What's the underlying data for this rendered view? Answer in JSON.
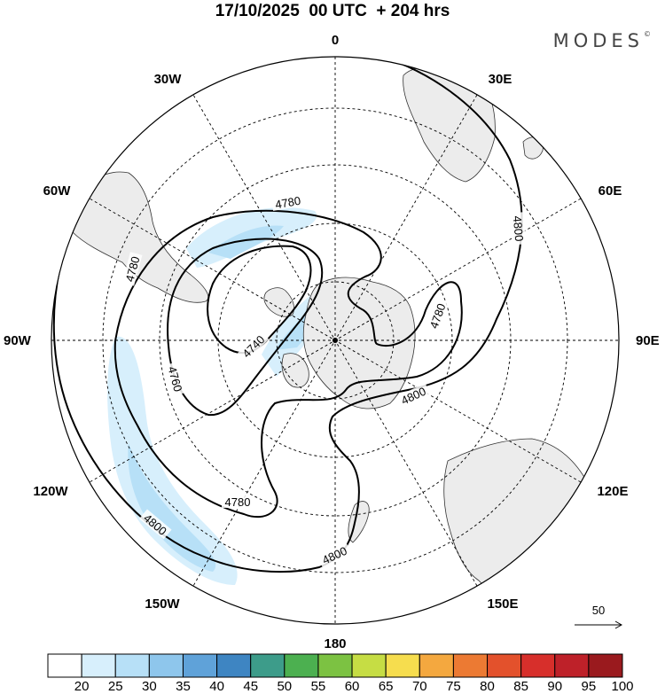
{
  "title": "17/10/2025  00 UTC  + 204 hrs",
  "brand": "MODES",
  "brand_mark": "©",
  "longitude_labels": {
    "lon_0": "0",
    "lon_30e": "30E",
    "lon_60e": "60E",
    "lon_90e": "90E",
    "lon_120e": "120E",
    "lon_150e": "150E",
    "lon_180": "180",
    "lon_150w": "150W",
    "lon_120w": "120W",
    "lon_90w": "90W",
    "lon_60w": "60W",
    "lon_30w": "30W"
  },
  "contours": {
    "c4740": "4740",
    "c4760": "4760",
    "c4780_a": "4780",
    "c4780_b": "4780",
    "c4780_c": "4780",
    "c4780_d": "4780",
    "c4800_a": "4800",
    "c4800_b": "4800",
    "c4800_c": "4800",
    "c4800_d": "4800"
  },
  "vector_scale": {
    "label": "50"
  },
  "colorbar": {
    "labels": [
      "20",
      "25",
      "30",
      "35",
      "40",
      "45",
      "50",
      "55",
      "60",
      "65",
      "70",
      "75",
      "80",
      "85",
      "90",
      "95",
      "100"
    ],
    "colors": [
      "#ffffff",
      "#d7effc",
      "#b7e0f7",
      "#8ec6ec",
      "#5fa2d9",
      "#3e85c2",
      "#3d9c8a",
      "#4cb050",
      "#7cc242",
      "#c6dd44",
      "#f6dd4e",
      "#f4a83f",
      "#ec7a33",
      "#e3512c",
      "#d72f2b",
      "#be2129",
      "#9a1a1e"
    ]
  },
  "colors": {
    "land": "#ececec",
    "jet_light": "#d7effc",
    "jet_mid": "#b7e0f7"
  }
}
